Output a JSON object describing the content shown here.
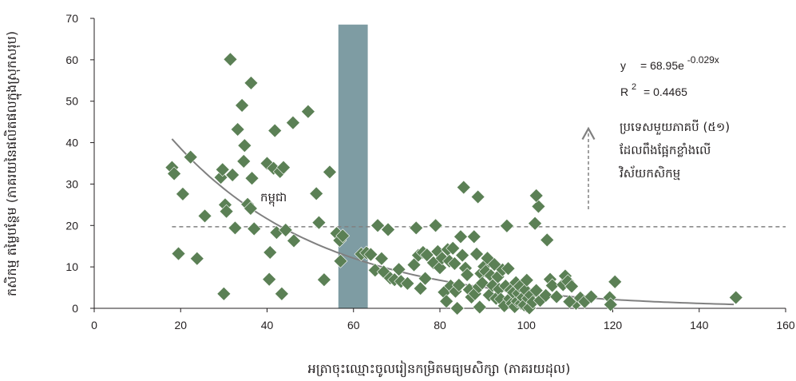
{
  "chart_data": {
    "type": "scatter",
    "xlabel": "អត្រាចុះឈ្មោះចូលរៀនកម្រិតមធ្យមសិក្សា (ភាគរយដុល)",
    "ylabel": "កសិកម្ម តម្លៃបន្ថែម (ភាគរយនៃផលិតផលក្នុងស្រុកសរុប)",
    "xlim": [
      0,
      160
    ],
    "ylim": [
      0,
      70
    ],
    "xticks": [
      0,
      20,
      40,
      60,
      80,
      100,
      120,
      140,
      160
    ],
    "yticks": [
      0,
      10,
      20,
      30,
      40,
      50,
      60,
      70
    ],
    "grid": false,
    "colors": {
      "marker": "#5b8055",
      "band": "#7e9ca3",
      "trend": "#808080",
      "threshold": "#808080",
      "arrow": "#808080"
    },
    "highlight_band": {
      "x_from": 56.5,
      "x_to": 63.3,
      "y_top": 68.5
    },
    "threshold_line": {
      "y": 19.7,
      "x_from": 18,
      "x_to": 160
    },
    "trendline": {
      "a": 68.95,
      "b": -0.029,
      "x_from": 18,
      "x_to": 148
    },
    "equation": {
      "y_label": "y",
      "rhs": "= 68.95e",
      "exponent": "-0.029x"
    },
    "r_squared": {
      "label": "R",
      "power": "2",
      "value": "= 0.4465"
    },
    "annotation_lines": [
      "ប្រទេសមួយភាគបី (៥១)",
      "ដែលពឹងផ្អែកខ្លាំងលើ",
      "វិស័យកសិកម្ម"
    ],
    "point_label": {
      "text": "កម្ពុជា",
      "x": 59,
      "y": 26
    },
    "points": [
      [
        18,
        34
      ],
      [
        18.5,
        32.5
      ],
      [
        19.5,
        13.2
      ],
      [
        20.5,
        27.6
      ],
      [
        22.3,
        36.5
      ],
      [
        23.8,
        12
      ],
      [
        25.6,
        22.3
      ],
      [
        29.3,
        31.6
      ],
      [
        29.7,
        33.5
      ],
      [
        30,
        3.5
      ],
      [
        30.3,
        25
      ],
      [
        30.6,
        23.4
      ],
      [
        31.5,
        60.1
      ],
      [
        32,
        32.2
      ],
      [
        32.6,
        19.4
      ],
      [
        33.2,
        43.2
      ],
      [
        34.2,
        49
      ],
      [
        34.6,
        35.5
      ],
      [
        34.8,
        39.3
      ],
      [
        35.5,
        25.1
      ],
      [
        36.2,
        24.1
      ],
      [
        36.3,
        54.4
      ],
      [
        36.5,
        31.4
      ],
      [
        37,
        19.2
      ],
      [
        40,
        35
      ],
      [
        40.5,
        7
      ],
      [
        40.7,
        13.5
      ],
      [
        41.5,
        33.8
      ],
      [
        41.8,
        42.9
      ],
      [
        42.2,
        18.3
      ],
      [
        43,
        33
      ],
      [
        43.4,
        3.5
      ],
      [
        43.8,
        34
      ],
      [
        44.3,
        18.9
      ],
      [
        46,
        44.8
      ],
      [
        46.2,
        16.3
      ],
      [
        49.5,
        47.5
      ],
      [
        51.4,
        27.7
      ],
      [
        52,
        20.7
      ],
      [
        53.2,
        6.9
      ],
      [
        54.5,
        32.9
      ],
      [
        56.1,
        18.1
      ],
      [
        56.8,
        16.4
      ],
      [
        57,
        11.4
      ],
      [
        57.5,
        17.5
      ],
      [
        61.8,
        13.1
      ],
      [
        63,
        13.4
      ],
      [
        65,
        9.2
      ],
      [
        65.6,
        20
      ],
      [
        66.5,
        12
      ],
      [
        67,
        8.8
      ],
      [
        68,
        19
      ],
      [
        68.5,
        7.3
      ],
      [
        69.5,
        6.9
      ],
      [
        70.5,
        9.4
      ],
      [
        71,
        6.5
      ],
      [
        72.5,
        6
      ],
      [
        74,
        10.5
      ],
      [
        74.5,
        19.4
      ],
      [
        75,
        12.8
      ],
      [
        75.5,
        4.8
      ],
      [
        76.1,
        13.5
      ],
      [
        76.6,
        7.2
      ],
      [
        77,
        12.9
      ],
      [
        78.5,
        11
      ],
      [
        79,
        20
      ],
      [
        79.5,
        13.7
      ],
      [
        80,
        9.8
      ],
      [
        80.5,
        12.1
      ],
      [
        81,
        3.9
      ],
      [
        81.5,
        1.7
      ],
      [
        81.8,
        14.2
      ],
      [
        82.2,
        11.4
      ],
      [
        82.5,
        5.4
      ],
      [
        83,
        14.5
      ],
      [
        83.4,
        10.8
      ],
      [
        83.6,
        4.1
      ],
      [
        84,
        0
      ],
      [
        84.4,
        5.6
      ],
      [
        84.8,
        17.3
      ],
      [
        85.2,
        12.8
      ],
      [
        85.5,
        29.2
      ],
      [
        85.9,
        9.7
      ],
      [
        86.3,
        8.1
      ],
      [
        86.8,
        4.5
      ],
      [
        87.3,
        2.7
      ],
      [
        87.9,
        17.3
      ],
      [
        88.1,
        3.5
      ],
      [
        88.5,
        13.1
      ],
      [
        88.8,
        26.9
      ],
      [
        89,
        5.2
      ],
      [
        89.2,
        0.3
      ],
      [
        89.5,
        8.4
      ],
      [
        89.8,
        6.1
      ],
      [
        90.2,
        10.1
      ],
      [
        90.6,
        8.9
      ],
      [
        91,
        12.1
      ],
      [
        91.4,
        3.2
      ],
      [
        91.8,
        7.9
      ],
      [
        92.2,
        5.5
      ],
      [
        92.6,
        10.6
      ],
      [
        93,
        2.4
      ],
      [
        93.4,
        7.6
      ],
      [
        93.7,
        4.6
      ],
      [
        94.1,
        2.2
      ],
      [
        94.5,
        9.3
      ],
      [
        94.9,
        0.6
      ],
      [
        95.2,
        5.4
      ],
      [
        95.5,
        19.9
      ],
      [
        95.8,
        9.6
      ],
      [
        96.1,
        2.3
      ],
      [
        96.4,
        4.4
      ],
      [
        96.7,
        1.2
      ],
      [
        97,
        3.8
      ],
      [
        97.3,
        0.4
      ],
      [
        97.6,
        6.2
      ],
      [
        97.9,
        1.7
      ],
      [
        98.2,
        3.6
      ],
      [
        98.5,
        5.3
      ],
      [
        98.8,
        1.2
      ],
      [
        99.2,
        2.6
      ],
      [
        99.5,
        0.8
      ],
      [
        99.8,
        4.4
      ],
      [
        100.1,
        6.8
      ],
      [
        100.4,
        2.4
      ],
      [
        100.7,
        0.1
      ],
      [
        101,
        3.2
      ],
      [
        101.5,
        1.5
      ],
      [
        102,
        20.5
      ],
      [
        102.3,
        4.3
      ],
      [
        102.8,
        24.6
      ],
      [
        103.2,
        1.9
      ],
      [
        104.5,
        3.1
      ],
      [
        104.8,
        16.5
      ],
      [
        105.5,
        7
      ],
      [
        106,
        5.5
      ],
      [
        107,
        2.8
      ],
      [
        108.5,
        5.7
      ],
      [
        109,
        7.8
      ],
      [
        109.6,
        6.5
      ],
      [
        110.5,
        5.3
      ],
      [
        111.5,
        1.2
      ],
      [
        112.5,
        2.5
      ],
      [
        113.5,
        1.6
      ],
      [
        115,
        2.8
      ],
      [
        119.3,
        2.6
      ],
      [
        119.5,
        0.9
      ],
      [
        120.5,
        6.4
      ],
      [
        148.5,
        2.6
      ],
      [
        102.3,
        27.2
      ],
      [
        110,
        1.6
      ],
      [
        64,
        13
      ]
    ]
  }
}
